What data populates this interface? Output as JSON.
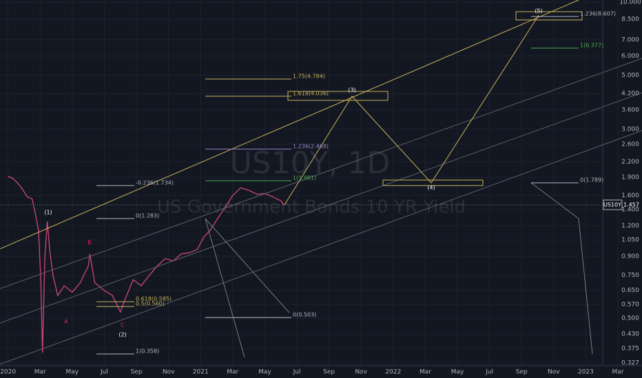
{
  "chart_data": {
    "type": "line",
    "watermark_symbol": "US10Y, 1D",
    "watermark_name": "US Government Bonds 10 YR Yield",
    "symbol": "US10Y",
    "last_value": 1.457,
    "log_scale": true,
    "grid": true,
    "xlim": [
      -0.5,
      39.5
    ],
    "ylim": [
      0.319,
      10.2
    ],
    "xticks": [
      {
        "value": 0,
        "label": "2020"
      },
      {
        "value": 2,
        "label": "Mar"
      },
      {
        "value": 4,
        "label": "May"
      },
      {
        "value": 6,
        "label": "Jul"
      },
      {
        "value": 8,
        "label": "Sep"
      },
      {
        "value": 10,
        "label": "Nov"
      },
      {
        "value": 12,
        "label": "2021"
      },
      {
        "value": 14,
        "label": "Mar"
      },
      {
        "value": 16,
        "label": "May"
      },
      {
        "value": 18,
        "label": "Jul"
      },
      {
        "value": 20,
        "label": "Sep"
      },
      {
        "value": 22,
        "label": "Nov"
      },
      {
        "value": 24,
        "label": "2022"
      },
      {
        "value": 26,
        "label": "Mar"
      },
      {
        "value": 28,
        "label": "May"
      },
      {
        "value": 30,
        "label": "Jul"
      },
      {
        "value": 32,
        "label": "Sep"
      },
      {
        "value": 34,
        "label": "Nov"
      },
      {
        "value": 36,
        "label": "2023"
      },
      {
        "value": 38,
        "label": "Mar"
      }
    ],
    "yticks": [
      {
        "value": 0.327,
        "label": "0.327"
      },
      {
        "value": 0.375,
        "label": "0.375"
      },
      {
        "value": 0.43,
        "label": "0.430"
      },
      {
        "value": 0.5,
        "label": "0.500"
      },
      {
        "value": 0.57,
        "label": "0.570"
      },
      {
        "value": 0.65,
        "label": "0.650"
      },
      {
        "value": 0.75,
        "label": "0.750"
      },
      {
        "value": 0.9,
        "label": "0.900"
      },
      {
        "value": 1.05,
        "label": "1.050"
      },
      {
        "value": 1.2,
        "label": "1.200"
      },
      {
        "value": 1.4,
        "label": "1.400"
      },
      {
        "value": 1.6,
        "label": "1.600"
      },
      {
        "value": 1.9,
        "label": "1.900"
      },
      {
        "value": 2.2,
        "label": "2.200"
      },
      {
        "value": 2.6,
        "label": "2.600"
      },
      {
        "value": 3,
        "label": "3.000"
      },
      {
        "value": 3.6,
        "label": "3.600"
      },
      {
        "value": 4.2,
        "label": "4.200"
      },
      {
        "value": 5,
        "label": "5.000"
      },
      {
        "value": 6,
        "label": "6.000"
      },
      {
        "value": 7,
        "label": "7.000"
      },
      {
        "value": 8.5,
        "label": "8.500"
      },
      {
        "value": 10,
        "label": "10.000"
      }
    ],
    "x": [
      0,
      0.3,
      0.6,
      0.9,
      1.2,
      1.5,
      1.7,
      1.9,
      2.05,
      2.15,
      2.3,
      2.45,
      2.6,
      2.8,
      3.1,
      3.5,
      4.0,
      4.5,
      5.0,
      5.1,
      5.4,
      6.0,
      6.5,
      7.0,
      7.3,
      7.8,
      8.3,
      8.8,
      9.3,
      9.8,
      10.3,
      10.8,
      11.3,
      11.8,
      12.2,
      12.6,
      13.1,
      13.6,
      14.0,
      14.5,
      15.0,
      15.5,
      16.0,
      16.5,
      17.0,
      17.2
    ],
    "series": [
      {
        "name": "US10Y",
        "color": "#d0467e",
        "values": [
          1.92,
          1.88,
          1.8,
          1.7,
          1.58,
          1.55,
          1.35,
          1.15,
          0.7,
          0.36,
          0.9,
          1.25,
          0.95,
          0.75,
          0.62,
          0.68,
          0.64,
          0.7,
          0.82,
          0.92,
          0.7,
          0.65,
          0.62,
          0.53,
          0.6,
          0.72,
          0.68,
          0.75,
          0.82,
          0.88,
          0.86,
          0.92,
          0.93,
          0.96,
          1.08,
          1.15,
          1.3,
          1.45,
          1.6,
          1.72,
          1.68,
          1.62,
          1.63,
          1.58,
          1.52,
          1.457
        ]
      }
    ],
    "fib_labels": [
      "1.75(4.784)",
      "1.618(4.036)",
      "1.236(2.468)",
      "1(1.981)",
      "-0.236(1.734)",
      "0(1.283)",
      "0.618(0.585)",
      "0.5(0.560)",
      "1(0.358)",
      "0(0.503)",
      "0(1.789)",
      "1(6.377)",
      "1.236(8.607)"
    ],
    "wave_labels": [
      "(1)",
      "(2)",
      "(3)",
      "(4)",
      "(5)",
      "A",
      "B",
      "C"
    ]
  }
}
